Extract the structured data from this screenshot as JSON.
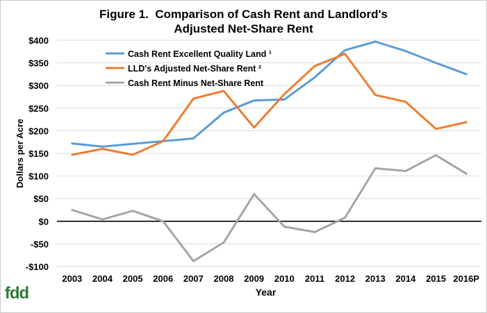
{
  "chart_data": {
    "type": "line",
    "title_line1": "Figure 1.  Comparison of Cash Rent and Landlord's",
    "title_line2": "Adjusted Net-Share Rent",
    "xlabel": "Year",
    "ylabel": "Dollars per Acre",
    "ylim": [
      -100,
      400
    ],
    "yticks": [
      -100,
      -50,
      0,
      50,
      100,
      150,
      200,
      250,
      300,
      350,
      400
    ],
    "ytick_labels": [
      "-$100",
      "-$50",
      "$0",
      "$50",
      "$100",
      "$150",
      "$200",
      "$250",
      "$300",
      "$350",
      "$400"
    ],
    "categories": [
      "2003",
      "2004",
      "2005",
      "2006",
      "2007",
      "2008",
      "2009",
      "2010",
      "2011",
      "2012",
      "2013",
      "2014",
      "2015",
      "2016P"
    ],
    "legend_position": "top-left",
    "grid": true,
    "series": [
      {
        "name": "Cash Rent Excellent Quality Land ¹",
        "color": "#5b9bd5",
        "values": [
          172,
          165,
          171,
          177,
          183,
          240,
          267,
          269,
          318,
          378,
          397,
          376,
          350,
          325
        ]
      },
      {
        "name": "LLD's Adjusted Net-Share Rent ²",
        "color": "#ed7d31",
        "values": [
          147,
          160,
          147,
          177,
          271,
          288,
          207,
          281,
          343,
          370,
          279,
          264,
          204,
          219
        ]
      },
      {
        "name": "Cash Rent Minus Net-Share Rent",
        "color": "#a5a5a5",
        "values": [
          25,
          4,
          23,
          0,
          -88,
          -47,
          60,
          -12,
          -24,
          8,
          117,
          111,
          146,
          105
        ]
      }
    ]
  },
  "logo": {
    "text": "fdd"
  }
}
